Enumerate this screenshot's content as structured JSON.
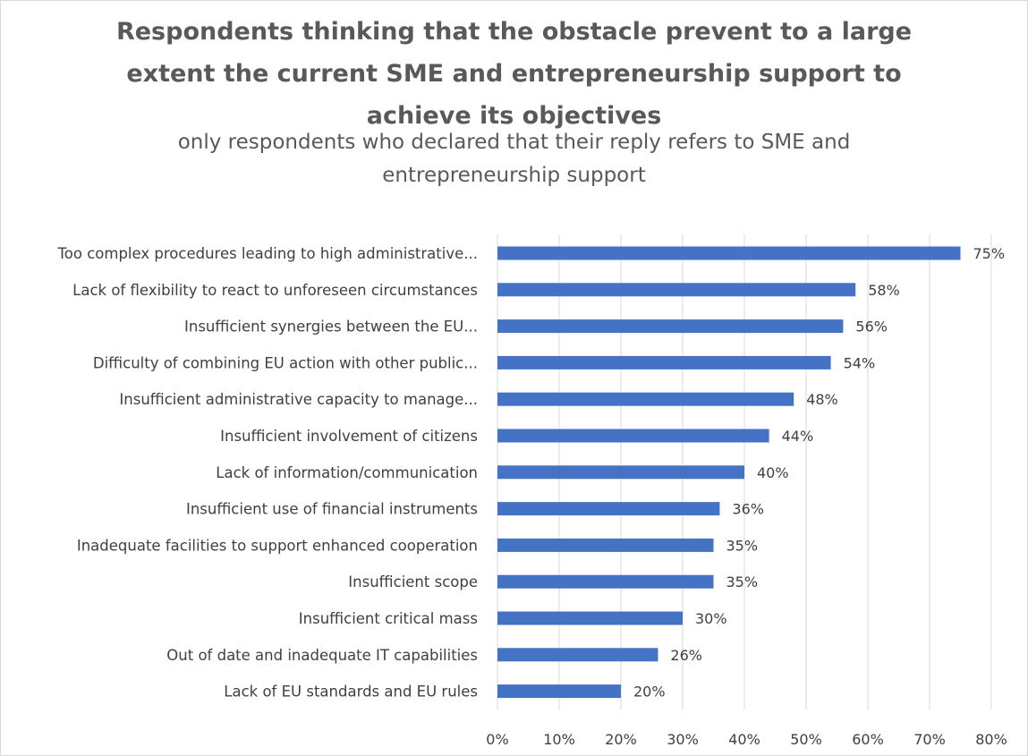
{
  "chart_data": {
    "type": "bar",
    "orientation": "horizontal",
    "title_lines": [
      "Respondents thinking that the obstacle prevent to a large",
      "extent the current SME and entrepreneurship support   to",
      "achieve its objectives"
    ],
    "subtitle_lines": [
      "only respondents who declared that their reply refers to SME and",
      "entrepreneurship support"
    ],
    "categories": [
      "Too complex procedures leading to high administrative...",
      "Lack of flexibility to react to unforeseen circumstances",
      "Insufficient synergies between the EU...",
      "Difficulty of combining EU action with other public...",
      "Insufficient administrative capacity to manage...",
      "Insufficient involvement of citizens",
      "Lack of information/communication",
      "Insufficient use of financial instruments",
      "Inadequate facilities to support enhanced cooperation",
      "Insufficient scope",
      "Insufficient critical mass",
      "Out of date and inadequate IT capabilities",
      "Lack of EU standards and EU rules"
    ],
    "values": [
      75,
      58,
      56,
      54,
      48,
      44,
      40,
      36,
      35,
      35,
      30,
      26,
      20
    ],
    "value_labels": [
      "75%",
      "58%",
      "56%",
      "54%",
      "48%",
      "44%",
      "40%",
      "36%",
      "35%",
      "35%",
      "30%",
      "26%",
      "20%"
    ],
    "xlim": [
      0,
      80
    ],
    "x_ticks": [
      "0%",
      "10%",
      "20%",
      "30%",
      "40%",
      "50%",
      "60%",
      "70%",
      "80%"
    ],
    "grid": "vertical",
    "bar_color": "#4472c4",
    "grid_color": "#d9d9d9",
    "text_color": "#404040",
    "title_color": "#595959"
  }
}
